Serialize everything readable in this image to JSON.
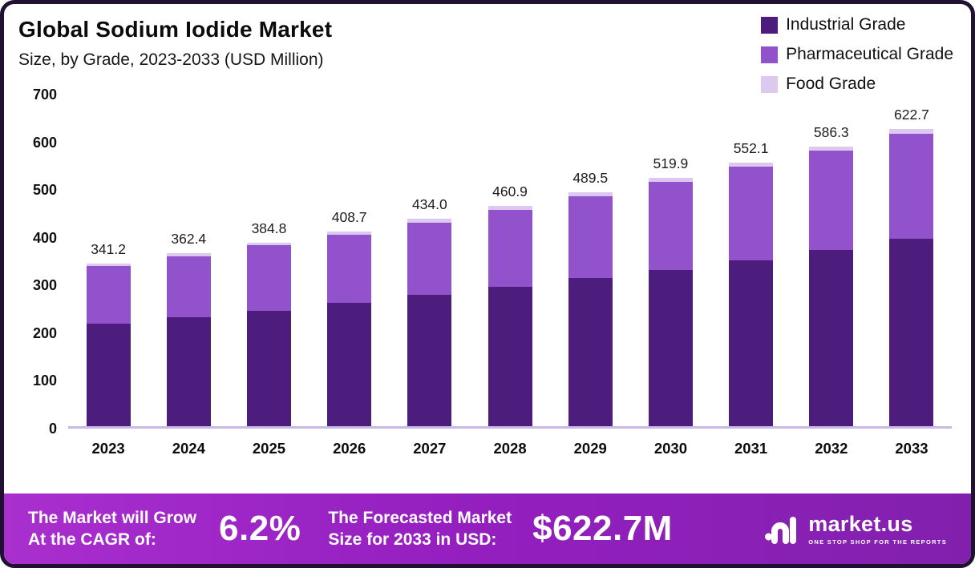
{
  "header": {
    "title": "Global Sodium Iodide Market",
    "subtitle": "Size, by Grade, 2023-2033 (USD Million)"
  },
  "legend": [
    {
      "label": "Industrial Grade",
      "color": "#4d1d7e"
    },
    {
      "label": "Pharmaceutical Grade",
      "color": "#9152cc"
    },
    {
      "label": "Food Grade",
      "color": "#ddc8f0"
    }
  ],
  "chart_data": {
    "type": "bar",
    "stacked": true,
    "title": "Global Sodium Iodide Market",
    "subtitle": "Size, by Grade, 2023-2033 (USD Million)",
    "categories": [
      "2023",
      "2024",
      "2025",
      "2026",
      "2027",
      "2028",
      "2029",
      "2030",
      "2031",
      "2032",
      "2033"
    ],
    "series": [
      {
        "name": "Industrial Grade",
        "color": "#4d1d7e",
        "values": [
          215,
          228,
          242,
          258,
          275,
          292,
          310,
          328,
          348,
          370,
          393
        ]
      },
      {
        "name": "Pharmaceutical Grade",
        "color": "#9152cc",
        "values": [
          120.2,
          128.4,
          136.8,
          143.7,
          152.0,
          161.9,
          171.5,
          183.9,
          195.1,
          207.3,
          219.7
        ]
      },
      {
        "name": "Food Grade",
        "color": "#ddc8f0",
        "values": [
          6,
          6,
          6,
          7,
          7,
          7,
          8,
          8,
          9,
          9,
          10
        ]
      }
    ],
    "totals": [
      "341.2",
      "362.4",
      "384.8",
      "408.7",
      "434.0",
      "460.9",
      "489.5",
      "519.9",
      "552.1",
      "586.3",
      "622.7"
    ],
    "ylim": [
      0,
      700
    ],
    "yticks": [
      0,
      100,
      200,
      300,
      400,
      500,
      600,
      700
    ],
    "xlabel": "",
    "ylabel": "",
    "grid": false,
    "legend_position": "top-right"
  },
  "footer": {
    "cagr_label_line1": "The Market will Grow",
    "cagr_label_line2": "At the CAGR of:",
    "cagr_value": "6.2%",
    "forecast_label_line1": "The Forecasted Market",
    "forecast_label_line2": "Size for 2033 in USD:",
    "forecast_value": "$622.7M",
    "brand": "market.us",
    "brand_tagline": "ONE STOP SHOP FOR THE REPORTS"
  }
}
